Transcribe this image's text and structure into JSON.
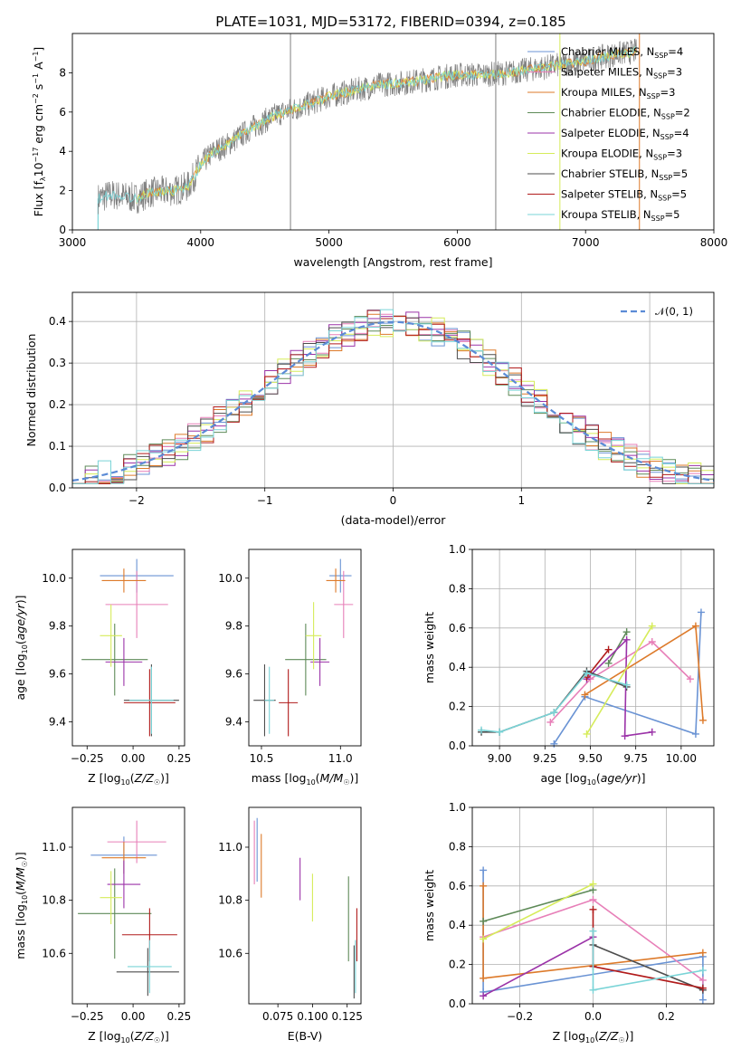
{
  "title": "PLATE=1031, MJD=53172, FIBERID=0394, z=0.185",
  "models": [
    {
      "name": "Chabrier MILES",
      "nssp": "4",
      "color": "#6a93d4"
    },
    {
      "name": "Salpeter MILES",
      "nssp": "3",
      "color": "#e77fb8"
    },
    {
      "name": "Kroupa MILES",
      "nssp": "3",
      "color": "#dd7a2a"
    },
    {
      "name": "Chabrier ELODIE",
      "nssp": "2",
      "color": "#5e8a58"
    },
    {
      "name": "Salpeter ELODIE",
      "nssp": "4",
      "color": "#9b33a8"
    },
    {
      "name": "Kroupa ELODIE",
      "nssp": "3",
      "color": "#d6ec5a"
    },
    {
      "name": "Chabrier STELIB",
      "nssp": "5",
      "color": "#4d4d4d"
    },
    {
      "name": "Salpeter STELIB",
      "nssp": "5",
      "color": "#b11b1b"
    },
    {
      "name": "Kroupa STELIB",
      "nssp": "5",
      "color": "#7ad4d7"
    }
  ],
  "chart_data": [
    {
      "id": "spectrum",
      "type": "line",
      "xlabel": "wavelength [Angstrom, rest frame]",
      "ylabel": "Flux [f_λ 10^-17 erg cm^-2 s^-1 A^-1]",
      "xlim": [
        3000,
        8000
      ],
      "ylim": [
        0,
        10
      ],
      "xticks": [
        3000,
        4000,
        5000,
        6000,
        7000,
        8000
      ],
      "yticks": [
        0,
        2,
        4,
        6,
        8
      ],
      "continuum": {
        "x": [
          3200,
          3300,
          3500,
          3600,
          3800,
          3900,
          4000,
          4100,
          4200,
          4400,
          4600,
          4800,
          5000,
          5200,
          5400,
          5600,
          5800,
          6000,
          6200,
          6400,
          6600,
          6800,
          7000,
          7200,
          7400
        ],
        "y": [
          1.6,
          1.8,
          1.6,
          1.9,
          2.0,
          2.2,
          3.3,
          4.0,
          4.3,
          5.2,
          5.9,
          6.3,
          6.8,
          7.1,
          7.4,
          7.5,
          7.7,
          7.9,
          7.9,
          8.0,
          8.2,
          8.4,
          8.6,
          8.9,
          9.1
        ]
      },
      "spikes": [
        4700,
        6300,
        6800,
        7420
      ],
      "grid": false
    },
    {
      "id": "residuals",
      "type": "step",
      "xlabel": "(data-model)/error",
      "ylabel": "Normed distribution",
      "xlim": [
        -2.5,
        2.5
      ],
      "ylim": [
        0,
        0.47
      ],
      "xticks": [
        -2,
        -1,
        0,
        1,
        2
      ],
      "yticks": [
        0.0,
        0.1,
        0.2,
        0.3,
        0.4
      ],
      "bin_edges_start": -2.5,
      "bin_width": 0.1,
      "reference": {
        "name": "𝒩(0, 1)",
        "mean": 0,
        "sigma": 1
      },
      "legend": "top-right",
      "grid": true
    },
    {
      "id": "age_vs_Z",
      "type": "errorbar",
      "xlabel": "Z [log10(Z/Z☉)]",
      "ylabel": "age [log10(age/yr)]",
      "xlim": [
        -0.33,
        0.28
      ],
      "ylim": [
        9.3,
        10.12
      ],
      "xticks": [
        -0.25,
        0.0,
        0.25
      ],
      "yticks": [
        9.4,
        9.6,
        9.8,
        10.0
      ],
      "points": [
        {
          "x": 0.02,
          "y": 10.01,
          "xerr": 0.2,
          "yerr": 0.07
        },
        {
          "x": 0.02,
          "y": 9.89,
          "xerr": 0.17,
          "yerr": 0.14
        },
        {
          "x": -0.05,
          "y": 9.99,
          "xerr": 0.12,
          "yerr": 0.05
        },
        {
          "x": -0.1,
          "y": 9.66,
          "xerr": 0.18,
          "yerr": 0.15
        },
        {
          "x": -0.05,
          "y": 9.65,
          "xerr": 0.1,
          "yerr": 0.1
        },
        {
          "x": -0.12,
          "y": 9.76,
          "xerr": 0.06,
          "yerr": 0.13
        },
        {
          "x": 0.1,
          "y": 9.49,
          "xerr": 0.15,
          "yerr": 0.15
        },
        {
          "x": 0.09,
          "y": 9.48,
          "xerr": 0.14,
          "yerr": 0.14
        },
        {
          "x": 0.1,
          "y": 9.49,
          "xerr": 0.12,
          "yerr": 0.14
        }
      ]
    },
    {
      "id": "age_vs_mass",
      "type": "errorbar",
      "xlabel": "mass [log10(M/M☉)]",
      "ylabel": "",
      "xlim": [
        10.42,
        11.13
      ],
      "ylim": [
        9.3,
        10.12
      ],
      "xticks": [
        10.5,
        11.0
      ],
      "yticks": [
        9.4,
        9.6,
        9.8,
        10.0
      ],
      "points": [
        {
          "x": 11.0,
          "y": 10.01,
          "xerr": 0.07,
          "yerr": 0.07
        },
        {
          "x": 11.02,
          "y": 9.89,
          "xerr": 0.06,
          "yerr": 0.14
        },
        {
          "x": 10.97,
          "y": 9.99,
          "xerr": 0.06,
          "yerr": 0.05
        },
        {
          "x": 10.78,
          "y": 9.66,
          "xerr": 0.13,
          "yerr": 0.15
        },
        {
          "x": 10.87,
          "y": 9.65,
          "xerr": 0.06,
          "yerr": 0.1
        },
        {
          "x": 10.83,
          "y": 9.76,
          "xerr": 0.05,
          "yerr": 0.14
        },
        {
          "x": 10.52,
          "y": 9.49,
          "xerr": 0.07,
          "yerr": 0.15
        },
        {
          "x": 10.67,
          "y": 9.48,
          "xerr": 0.06,
          "yerr": 0.14
        },
        {
          "x": 10.55,
          "y": 9.49,
          "xerr": 0.03,
          "yerr": 0.14
        }
      ]
    },
    {
      "id": "weight_vs_age",
      "type": "line",
      "xlabel": "age [log10(age/yr)]",
      "ylabel": "mass weight",
      "xlim": [
        8.85,
        10.18
      ],
      "ylim": [
        0.0,
        1.0
      ],
      "xticks": [
        9.0,
        9.25,
        9.5,
        9.75,
        10.0
      ],
      "yticks": [
        0.0,
        0.2,
        0.4,
        0.6,
        0.8,
        1.0
      ],
      "grid": true,
      "series": [
        {
          "model": 0,
          "points": [
            [
              9.3,
              0.01
            ],
            [
              9.47,
              0.25
            ],
            [
              10.08,
              0.06
            ],
            [
              10.11,
              0.68
            ]
          ]
        },
        {
          "model": 1,
          "points": [
            [
              9.28,
              0.12
            ],
            [
              9.5,
              0.34
            ],
            [
              9.84,
              0.53
            ],
            [
              10.05,
              0.34
            ]
          ]
        },
        {
          "model": 2,
          "points": [
            [
              9.47,
              0.26
            ],
            [
              10.08,
              0.61
            ],
            [
              10.12,
              0.13
            ]
          ]
        },
        {
          "model": 3,
          "points": [
            [
              9.6,
              0.42
            ],
            [
              9.7,
              0.58
            ]
          ]
        },
        {
          "model": 4,
          "points": [
            [
              9.48,
              0.34
            ],
            [
              9.7,
              0.54
            ],
            [
              9.69,
              0.05
            ],
            [
              9.84,
              0.07
            ]
          ]
        },
        {
          "model": 5,
          "points": [
            [
              9.48,
              0.06
            ],
            [
              9.84,
              0.61
            ]
          ]
        },
        {
          "model": 6,
          "points": [
            [
              8.9,
              0.07
            ],
            [
              9.0,
              0.07
            ],
            [
              9.3,
              0.17
            ],
            [
              9.48,
              0.38
            ],
            [
              9.7,
              0.3
            ]
          ]
        },
        {
          "model": 7,
          "points": [
            [
              9.48,
              0.35
            ],
            [
              9.6,
              0.49
            ]
          ]
        },
        {
          "model": 8,
          "points": [
            [
              8.9,
              0.08
            ],
            [
              9.0,
              0.07
            ],
            [
              9.3,
              0.17
            ],
            [
              9.48,
              0.37
            ],
            [
              9.7,
              0.31
            ]
          ]
        }
      ]
    },
    {
      "id": "mass_vs_Z",
      "type": "errorbar",
      "xlabel": "Z [log10(Z/Z☉)]",
      "ylabel": "mass [log10(M/M☉)]",
      "xlim": [
        -0.33,
        0.28
      ],
      "ylim": [
        10.41,
        11.15
      ],
      "xticks": [
        -0.25,
        0.0,
        0.25
      ],
      "yticks": [
        10.6,
        10.8,
        11.0
      ],
      "points": [
        {
          "x": -0.05,
          "y": 10.97,
          "xerr": 0.18,
          "yerr": 0.07
        },
        {
          "x": 0.02,
          "y": 11.02,
          "xerr": 0.16,
          "yerr": 0.08
        },
        {
          "x": -0.05,
          "y": 10.96,
          "xerr": 0.12,
          "yerr": 0.06
        },
        {
          "x": -0.1,
          "y": 10.75,
          "xerr": 0.2,
          "yerr": 0.17
        },
        {
          "x": -0.05,
          "y": 10.86,
          "xerr": 0.09,
          "yerr": 0.09
        },
        {
          "x": -0.12,
          "y": 10.81,
          "xerr": 0.06,
          "yerr": 0.1
        },
        {
          "x": 0.08,
          "y": 10.53,
          "xerr": 0.17,
          "yerr": 0.09
        },
        {
          "x": 0.09,
          "y": 10.67,
          "xerr": 0.15,
          "yerr": 0.1
        },
        {
          "x": 0.09,
          "y": 10.55,
          "xerr": 0.12,
          "yerr": 0.1
        }
      ]
    },
    {
      "id": "mass_vs_EBV",
      "type": "errorbar",
      "xlabel": "E(B-V)",
      "ylabel": "",
      "xlim": [
        0.054,
        0.135
      ],
      "ylim": [
        10.41,
        11.15
      ],
      "xticks": [
        0.075,
        0.1,
        0.125
      ],
      "yticks": [
        10.6,
        10.8,
        11.0
      ],
      "points": [
        {
          "x": 0.06,
          "y": 10.99,
          "xerr": 0,
          "yerr": 0.12
        },
        {
          "x": 0.058,
          "y": 10.98,
          "xerr": 0,
          "yerr": 0.12
        },
        {
          "x": 0.063,
          "y": 10.93,
          "xerr": 0,
          "yerr": 0.12
        },
        {
          "x": 0.126,
          "y": 10.73,
          "xerr": 0,
          "yerr": 0.16
        },
        {
          "x": 0.091,
          "y": 10.88,
          "xerr": 0,
          "yerr": 0.08
        },
        {
          "x": 0.1,
          "y": 10.81,
          "xerr": 0,
          "yerr": 0.09
        },
        {
          "x": 0.13,
          "y": 10.53,
          "xerr": 0,
          "yerr": 0.1
        },
        {
          "x": 0.132,
          "y": 10.67,
          "xerr": 0,
          "yerr": 0.1
        },
        {
          "x": 0.131,
          "y": 10.55,
          "xerr": 0,
          "yerr": 0.1
        }
      ]
    },
    {
      "id": "weight_vs_Z",
      "type": "line",
      "xlabel": "Z [log10(Z/Z☉)]",
      "ylabel": "mass weight",
      "xlim": [
        -0.33,
        0.33
      ],
      "ylim": [
        0.0,
        1.0
      ],
      "xticks": [
        -0.2,
        0.0,
        0.2
      ],
      "yticks": [
        0.0,
        0.2,
        0.4,
        0.6,
        0.8,
        1.0
      ],
      "grid": true,
      "series": [
        {
          "model": 0,
          "points": [
            [
              -0.3,
              0.68
            ],
            [
              -0.3,
              0.06
            ],
            [
              0.3,
              0.24
            ],
            [
              0.3,
              0.02
            ]
          ]
        },
        {
          "model": 1,
          "points": [
            [
              -0.3,
              0.34
            ],
            [
              0.0,
              0.53
            ],
            [
              0.3,
              0.12
            ]
          ]
        },
        {
          "model": 2,
          "points": [
            [
              -0.3,
              0.6
            ],
            [
              -0.3,
              0.13
            ],
            [
              0.3,
              0.26
            ]
          ]
        },
        {
          "model": 3,
          "points": [
            [
              -0.3,
              0.42
            ],
            [
              0.0,
              0.58
            ]
          ]
        },
        {
          "model": 4,
          "points": [
            [
              -0.3,
              0.04
            ],
            [
              0.0,
              0.34
            ]
          ]
        },
        {
          "model": 5,
          "points": [
            [
              -0.3,
              0.33
            ],
            [
              0.0,
              0.61
            ]
          ]
        },
        {
          "model": 6,
          "points": [
            [
              0.0,
              0.3
            ],
            [
              0.3,
              0.07
            ]
          ]
        },
        {
          "model": 7,
          "points": [
            [
              0.0,
              0.48
            ],
            [
              0.0,
              0.19
            ],
            [
              0.3,
              0.08
            ]
          ]
        },
        {
          "model": 8,
          "points": [
            [
              0.0,
              0.37
            ],
            [
              0.0,
              0.07
            ],
            [
              0.3,
              0.17
            ]
          ]
        }
      ]
    }
  ]
}
